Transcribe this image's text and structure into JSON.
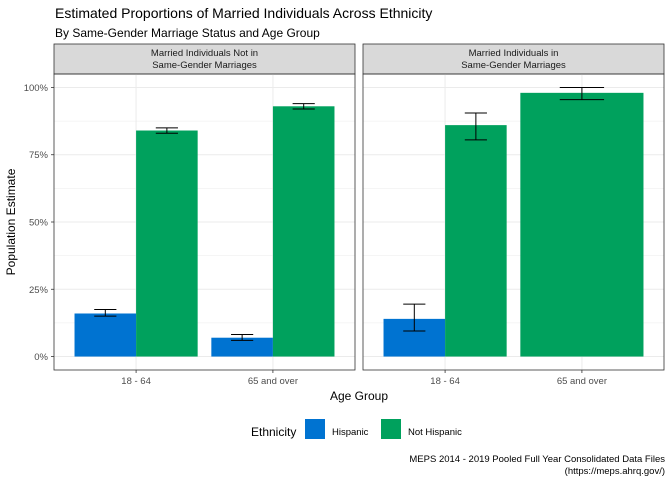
{
  "chart_data": {
    "type": "bar",
    "title": "Estimated Proportions of Married Individuals Across Ethnicity",
    "subtitle": "By Same-Gender Marriage Status and Age Group",
    "xlabel": "Age Group",
    "ylabel": "Population Estimate",
    "ylim": [
      0,
      1
    ],
    "y_ticks": [
      0,
      0.25,
      0.5,
      0.75,
      1.0
    ],
    "y_tick_labels": [
      "0%",
      "25%",
      "50%",
      "75%",
      "100%"
    ],
    "grid": true,
    "categories": [
      "18 - 64",
      "65 and over"
    ],
    "legend": {
      "title": "Ethnicity",
      "placement": "bottom",
      "entries": [
        {
          "name": "Hispanic",
          "color": "#0073d1"
        },
        {
          "name": "Not Hispanic",
          "color": "#00a15d"
        }
      ]
    },
    "panels": [
      {
        "strip_line1": "Married Individuals Not in",
        "strip_line2": "Same-Gender Marriages",
        "groups": [
          {
            "category": "18 - 64",
            "bars": [
              {
                "series": "Hispanic",
                "value": 0.16,
                "lower": 0.15,
                "upper": 0.175
              },
              {
                "series": "Not Hispanic",
                "value": 0.84,
                "lower": 0.83,
                "upper": 0.85
              }
            ]
          },
          {
            "category": "65 and over",
            "bars": [
              {
                "series": "Hispanic",
                "value": 0.07,
                "lower": 0.06,
                "upper": 0.082
              },
              {
                "series": "Not Hispanic",
                "value": 0.93,
                "lower": 0.92,
                "upper": 0.94
              }
            ]
          }
        ]
      },
      {
        "strip_line1": "Married Individuals in",
        "strip_line2": "Same-Gender Marriages",
        "groups": [
          {
            "category": "18 - 64",
            "bars": [
              {
                "series": "Hispanic",
                "value": 0.14,
                "lower": 0.095,
                "upper": 0.195
              },
              {
                "series": "Not Hispanic",
                "value": 0.86,
                "lower": 0.805,
                "upper": 0.905
              }
            ]
          },
          {
            "category": "65 and over",
            "bars": [
              {
                "series": "Not Hispanic",
                "value": 0.98,
                "lower": 0.955,
                "upper": 1.0
              }
            ]
          }
        ]
      }
    ],
    "caption_line1": "MEPS 2014 - 2019 Pooled Full Year Consolidated Data Files",
    "caption_line2": "(https://meps.ahrq.gov/)"
  }
}
